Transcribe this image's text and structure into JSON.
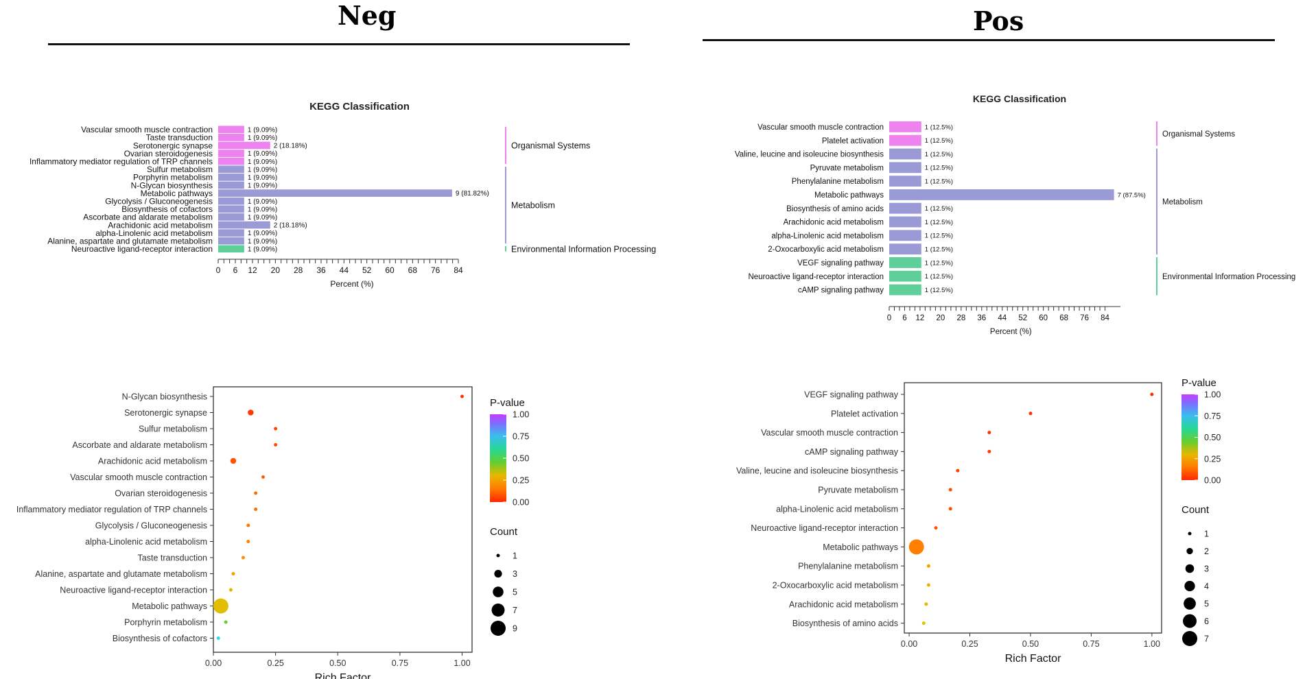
{
  "panels": [
    {
      "title": "Neg"
    },
    {
      "title": "Pos"
    }
  ],
  "chart_data": [
    {
      "id": "neg-kegg",
      "type": "bar",
      "orientation": "horizontal",
      "title": "KEGG Classification",
      "xlabel": "Percent (%)",
      "xticks": [
        0,
        6,
        12,
        20,
        28,
        36,
        44,
        52,
        60,
        68,
        76,
        84
      ],
      "xlim": [
        0,
        84
      ],
      "categories": [
        "Vascular smooth muscle contraction",
        "Taste transduction",
        "Serotonergic synapse",
        "Ovarian steroidogenesis",
        "Inflammatory mediator regulation of TRP channels",
        "Sulfur metabolism",
        "Porphyrin metabolism",
        "N-Glycan biosynthesis",
        "Metabolic pathways",
        "Glycolysis / Gluconeogenesis",
        "Biosynthesis of cofactors",
        "Ascorbate and aldarate metabolism",
        "Arachidonic acid metabolism",
        "alpha-Linolenic acid metabolism",
        "Alanine, aspartate and glutamate metabolism",
        "Neuroactive ligand-receptor interaction"
      ],
      "values": [
        9.09,
        9.09,
        18.18,
        9.09,
        9.09,
        9.09,
        9.09,
        9.09,
        81.82,
        9.09,
        9.09,
        9.09,
        18.18,
        9.09,
        9.09,
        9.09
      ],
      "counts": [
        1,
        1,
        2,
        1,
        1,
        1,
        1,
        1,
        9,
        1,
        1,
        1,
        2,
        1,
        1,
        1
      ],
      "value_labels": [
        "1 (9.09%)",
        "1 (9.09%)",
        "2 (18.18%)",
        "1 (9.09%)",
        "1 (9.09%)",
        "1 (9.09%)",
        "1 (9.09%)",
        "1 (9.09%)",
        "9 (81.82%)",
        "1 (9.09%)",
        "1 (9.09%)",
        "1 (9.09%)",
        "2 (18.18%)",
        "1 (9.09%)",
        "1 (9.09%)",
        "1 (9.09%)"
      ],
      "groups": [
        {
          "name": "Organismal Systems",
          "start": 0,
          "end": 4,
          "color": "#ee82ee"
        },
        {
          "name": "Metabolism",
          "start": 5,
          "end": 14,
          "color": "#9a9ad6"
        },
        {
          "name": "Environmental Information Processing",
          "start": 15,
          "end": 15,
          "color": "#5fcf9a"
        }
      ]
    },
    {
      "id": "pos-kegg",
      "type": "bar",
      "orientation": "horizontal",
      "title": "KEGG Classification",
      "xlabel": "Percent (%)",
      "xticks": [
        0,
        6,
        12,
        20,
        28,
        36,
        44,
        52,
        60,
        68,
        76,
        84
      ],
      "xlim": [
        0,
        90
      ],
      "categories": [
        "Vascular smooth muscle contraction",
        "Platelet activation",
        "Valine, leucine and isoleucine biosynthesis",
        "Pyruvate metabolism",
        "Phenylalanine metabolism",
        "Metabolic pathways",
        "Biosynthesis of amino acids",
        "Arachidonic acid metabolism",
        "alpha-Linolenic acid metabolism",
        "2-Oxocarboxylic acid metabolism",
        "VEGF signaling pathway",
        "Neuroactive ligand-receptor interaction",
        "cAMP signaling pathway"
      ],
      "values": [
        12.5,
        12.5,
        12.5,
        12.5,
        12.5,
        87.5,
        12.5,
        12.5,
        12.5,
        12.5,
        12.5,
        12.5,
        12.5
      ],
      "counts": [
        1,
        1,
        1,
        1,
        1,
        7,
        1,
        1,
        1,
        1,
        1,
        1,
        1
      ],
      "value_labels": [
        "1 (12.5%)",
        "1 (12.5%)",
        "1 (12.5%)",
        "1 (12.5%)",
        "1 (12.5%)",
        "7 (87.5%)",
        "1 (12.5%)",
        "1 (12.5%)",
        "1 (12.5%)",
        "1 (12.5%)",
        "1 (12.5%)",
        "1 (12.5%)",
        "1 (12.5%)"
      ],
      "groups": [
        {
          "name": "Organismal Systems",
          "start": 0,
          "end": 1,
          "color": "#ee82ee"
        },
        {
          "name": "Metabolism",
          "start": 2,
          "end": 9,
          "color": "#9a9ad6"
        },
        {
          "name": "Environmental Information Processing",
          "start": 10,
          "end": 12,
          "color": "#5fcf9a"
        }
      ]
    },
    {
      "id": "neg-bubble",
      "type": "scatter",
      "xlabel": "Rich Factor",
      "xticks": [
        "0.00",
        "0.25",
        "0.50",
        "0.75",
        "1.00"
      ],
      "xlim": [
        0,
        1.04
      ],
      "categories": [
        "N-Glycan biosynthesis",
        "Serotonergic synapse",
        "Sulfur metabolism",
        "Ascorbate and aldarate metabolism",
        "Arachidonic acid metabolism",
        "Vascular smooth muscle contraction",
        "Ovarian steroidogenesis",
        "Inflammatory mediator regulation of TRP channels",
        "Glycolysis / Gluconeogenesis",
        "alpha-Linolenic acid metabolism",
        "Taste transduction",
        "Alanine, aspartate and glutamate metabolism",
        "Neuroactive ligand-receptor interaction",
        "Metabolic pathways",
        "Porphyrin metabolism",
        "Biosynthesis of cofactors"
      ],
      "rich_factor": [
        1.0,
        0.15,
        0.25,
        0.25,
        0.08,
        0.2,
        0.17,
        0.17,
        0.14,
        0.14,
        0.12,
        0.08,
        0.07,
        0.03,
        0.05,
        0.02
      ],
      "count": [
        1,
        2,
        1,
        1,
        2,
        1,
        1,
        1,
        1,
        1,
        1,
        1,
        1,
        9,
        1,
        1
      ],
      "pvalue": [
        0.02,
        0.04,
        0.05,
        0.06,
        0.08,
        0.1,
        0.12,
        0.13,
        0.14,
        0.16,
        0.18,
        0.22,
        0.27,
        0.32,
        0.45,
        0.7
      ],
      "legend_color_title": "P-value",
      "legend_color_ticks": [
        "1.00",
        "0.75",
        "0.50",
        "0.25",
        "0.00"
      ],
      "legend_size_title": "Count",
      "legend_size_values": [
        1,
        3,
        5,
        7,
        9
      ]
    },
    {
      "id": "pos-bubble",
      "type": "scatter",
      "xlabel": "Rich Factor",
      "xticks": [
        "0.00",
        "0.25",
        "0.50",
        "0.75",
        "1.00"
      ],
      "xlim": [
        -0.02,
        1.04
      ],
      "categories": [
        "VEGF signaling pathway",
        "Platelet activation",
        "Vascular smooth muscle contraction",
        "cAMP signaling pathway",
        "Valine, leucine and isoleucine biosynthesis",
        "Pyruvate metabolism",
        "alpha-Linolenic acid metabolism",
        "Neuroactive ligand-receptor interaction",
        "Metabolic pathways",
        "Phenylalanine metabolism",
        "2-Oxocarboxylic acid metabolism",
        "Arachidonic acid metabolism",
        "Biosynthesis of amino acids"
      ],
      "rich_factor": [
        1.0,
        0.5,
        0.33,
        0.33,
        0.2,
        0.17,
        0.17,
        0.11,
        0.03,
        0.08,
        0.08,
        0.07,
        0.06
      ],
      "count": [
        1,
        1,
        1,
        1,
        1,
        1,
        1,
        1,
        7,
        1,
        1,
        1,
        1
      ],
      "pvalue": [
        0.01,
        0.02,
        0.03,
        0.04,
        0.05,
        0.06,
        0.07,
        0.08,
        0.16,
        0.22,
        0.26,
        0.3,
        0.34
      ],
      "legend_color_title": "P-value",
      "legend_color_ticks": [
        "1.00",
        "0.75",
        "0.50",
        "0.25",
        "0.00"
      ],
      "legend_size_title": "Count",
      "legend_size_values": [
        1,
        2,
        3,
        4,
        5,
        6,
        7
      ]
    }
  ]
}
